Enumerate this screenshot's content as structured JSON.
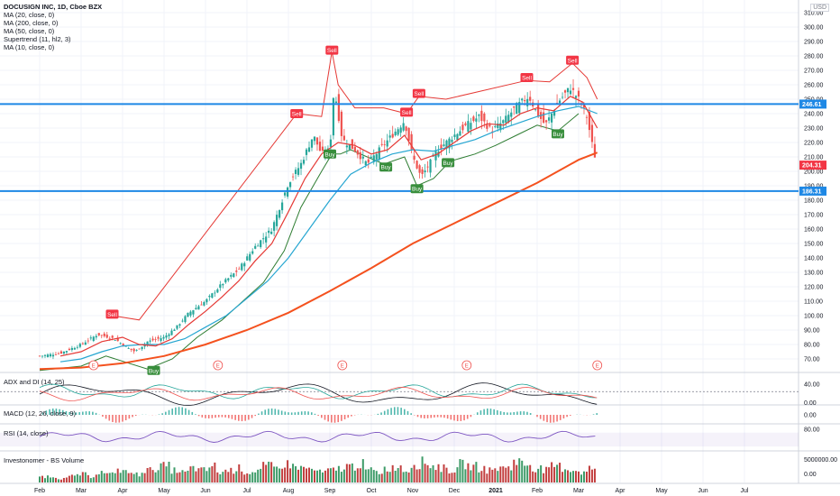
{
  "header": {
    "title": "DOCUSIGN INC, 1D, Cboe BZX",
    "indicators": [
      "MA (20, close, 0)",
      "MA (200, close, 0)",
      "MA (50, close, 0)",
      "Supertrend (11, hl2, 3)",
      "MA (10, close, 0)"
    ],
    "currency": "USD"
  },
  "panes": {
    "adx": {
      "label": "ADX and DI (14, 25)",
      "ticks": [
        "40.00",
        "0.00"
      ]
    },
    "macd": {
      "label": "MACD (12, 26, close, 9)",
      "ticks": [
        "0.00"
      ]
    },
    "rsi": {
      "label": "RSI (14, close)",
      "ticks": [
        "80.00"
      ]
    },
    "volume": {
      "label": "Investonomer - BS Volume",
      "ticks": [
        "5000000.00",
        "0.00"
      ]
    }
  },
  "colors": {
    "ma200": "#f4511e",
    "ma20": "#e53935",
    "ma50": "#26a6d1",
    "supertrend_up": "#2e7d32",
    "supertrend_down": "#e53935",
    "level": "#1e88e5",
    "bull": "#26a69a",
    "bear": "#ef5350"
  },
  "chart_data": {
    "type": "candlestick",
    "price_axis": {
      "min": 60,
      "max": 310,
      "ticks": [
        "310.00",
        "300.00",
        "290.00",
        "280.00",
        "270.00",
        "260.00",
        "250.00",
        "240.00",
        "230.00",
        "220.00",
        "210.00",
        "200.00",
        "190.00",
        "180.00",
        "170.00",
        "160.00",
        "150.00",
        "140.00",
        "130.00",
        "120.00",
        "110.00",
        "100.00",
        "90.00",
        "80.00",
        "70.00"
      ]
    },
    "time_axis": [
      "Feb",
      "Mar",
      "Apr",
      "May",
      "Jun",
      "Jul",
      "Aug",
      "Sep",
      "Oct",
      "Nov",
      "Dec",
      "2021",
      "Feb",
      "Mar",
      "Apr",
      "May",
      "Jun",
      "Jul"
    ],
    "horizontal_levels": [
      246.61,
      186.31
    ],
    "price_badges": [
      {
        "label": "246.61",
        "value": 246.61,
        "color": "#1e88e5"
      },
      {
        "label": "204.31",
        "value": 204.31,
        "color": "#f23645"
      },
      {
        "label": "186.31",
        "value": 186.31,
        "color": "#1e88e5"
      }
    ],
    "signals": [
      {
        "label": "Sell",
        "month": 1.75,
        "price": 101
      },
      {
        "label": "Buy",
        "month": 2.75,
        "price": 62
      },
      {
        "label": "Sell",
        "month": 7.05,
        "price": 284
      },
      {
        "label": "Buy",
        "month": 7.0,
        "price": 212
      },
      {
        "label": "Sell",
        "month": 6.2,
        "price": 240
      },
      {
        "label": "Buy",
        "month": 8.35,
        "price": 203
      },
      {
        "label": "Sell",
        "month": 8.85,
        "price": 241
      },
      {
        "label": "Sell",
        "month": 9.15,
        "price": 254
      },
      {
        "label": "Buy",
        "month": 9.1,
        "price": 188
      },
      {
        "label": "Buy",
        "month": 9.85,
        "price": 206
      },
      {
        "label": "Sell",
        "month": 11.75,
        "price": 265
      },
      {
        "label": "Buy",
        "month": 12.5,
        "price": 226
      },
      {
        "label": "Sell",
        "month": 12.85,
        "price": 277
      }
    ],
    "earnings": [
      {
        "label": "E",
        "month": 1.3
      },
      {
        "label": "E",
        "month": 4.3
      },
      {
        "label": "E",
        "month": 7.3
      },
      {
        "label": "E",
        "month": 10.3
      },
      {
        "label": "E",
        "month": 13.45
      }
    ],
    "close_path": [
      [
        0,
        72
      ],
      [
        0.5,
        74
      ],
      [
        1,
        80
      ],
      [
        1.4,
        87
      ],
      [
        1.8,
        84
      ],
      [
        2.1,
        78
      ],
      [
        2.3,
        75
      ],
      [
        2.6,
        82
      ],
      [
        3.0,
        85
      ],
      [
        3.3,
        92
      ],
      [
        3.6,
        102
      ],
      [
        4.0,
        110
      ],
      [
        4.4,
        122
      ],
      [
        4.8,
        132
      ],
      [
        5.2,
        148
      ],
      [
        5.6,
        160
      ],
      [
        6.0,
        192
      ],
      [
        6.3,
        205
      ],
      [
        6.6,
        225
      ],
      [
        6.8,
        212
      ],
      [
        7.0,
        215
      ],
      [
        7.1,
        258
      ],
      [
        7.3,
        222
      ],
      [
        7.6,
        215
      ],
      [
        7.9,
        205
      ],
      [
        8.2,
        215
      ],
      [
        8.5,
        225
      ],
      [
        8.8,
        235
      ],
      [
        9.0,
        210
      ],
      [
        9.2,
        196
      ],
      [
        9.4,
        205
      ],
      [
        9.6,
        215
      ],
      [
        9.8,
        220
      ],
      [
        10.0,
        225
      ],
      [
        10.3,
        232
      ],
      [
        10.6,
        238
      ],
      [
        10.9,
        228
      ],
      [
        11.2,
        235
      ],
      [
        11.5,
        245
      ],
      [
        11.8,
        252
      ],
      [
        12.0,
        240
      ],
      [
        12.2,
        232
      ],
      [
        12.5,
        248
      ],
      [
        12.8,
        258
      ],
      [
        13.0,
        250
      ],
      [
        13.2,
        238
      ],
      [
        13.35,
        215
      ],
      [
        13.45,
        204.31
      ]
    ],
    "ma20_path": [
      [
        0.5,
        72
      ],
      [
        1,
        75
      ],
      [
        1.5,
        82
      ],
      [
        2,
        85
      ],
      [
        2.4,
        80
      ],
      [
        2.8,
        79
      ],
      [
        3.2,
        84
      ],
      [
        3.6,
        94
      ],
      [
        4.0,
        103
      ],
      [
        4.4,
        113
      ],
      [
        4.8,
        124
      ],
      [
        5.2,
        138
      ],
      [
        5.6,
        150
      ],
      [
        6.0,
        172
      ],
      [
        6.4,
        195
      ],
      [
        6.8,
        212
      ],
      [
        7.2,
        220
      ],
      [
        7.6,
        218
      ],
      [
        8.0,
        212
      ],
      [
        8.4,
        215
      ],
      [
        8.8,
        225
      ],
      [
        9.2,
        208
      ],
      [
        9.6,
        212
      ],
      [
        10.0,
        220
      ],
      [
        10.4,
        228
      ],
      [
        10.8,
        233
      ],
      [
        11.2,
        232
      ],
      [
        11.6,
        240
      ],
      [
        12.0,
        244
      ],
      [
        12.4,
        242
      ],
      [
        12.8,
        252
      ],
      [
        13.1,
        248
      ],
      [
        13.45,
        230
      ]
    ],
    "ma50_path": [
      [
        0.5,
        68
      ],
      [
        1,
        70
      ],
      [
        1.5,
        75
      ],
      [
        2,
        79
      ],
      [
        2.5,
        80
      ],
      [
        3,
        80
      ],
      [
        3.5,
        84
      ],
      [
        4,
        92
      ],
      [
        4.5,
        100
      ],
      [
        5,
        112
      ],
      [
        5.5,
        124
      ],
      [
        6,
        140
      ],
      [
        6.5,
        160
      ],
      [
        7,
        180
      ],
      [
        7.5,
        198
      ],
      [
        8,
        206
      ],
      [
        8.5,
        212
      ],
      [
        9,
        215
      ],
      [
        9.5,
        214
      ],
      [
        10,
        218
      ],
      [
        10.5,
        222
      ],
      [
        11,
        228
      ],
      [
        11.5,
        233
      ],
      [
        12,
        238
      ],
      [
        12.5,
        242
      ],
      [
        13,
        245
      ],
      [
        13.45,
        240
      ]
    ],
    "ma200_path": [
      [
        0,
        63
      ],
      [
        1,
        64
      ],
      [
        2,
        67
      ],
      [
        3,
        72
      ],
      [
        4,
        80
      ],
      [
        5,
        90
      ],
      [
        6,
        102
      ],
      [
        7,
        117
      ],
      [
        8,
        133
      ],
      [
        9,
        150
      ],
      [
        10,
        164
      ],
      [
        11,
        178
      ],
      [
        12,
        192
      ],
      [
        13,
        208
      ],
      [
        13.45,
        213
      ]
    ],
    "supertrend_up": [
      [
        0,
        62
      ],
      [
        1,
        65
      ],
      [
        1.6,
        72
      ],
      [
        2.6,
        63
      ],
      [
        3.2,
        70
      ],
      [
        3.8,
        85
      ],
      [
        4.4,
        97
      ],
      [
        4.9,
        110
      ],
      [
        5.4,
        123
      ],
      [
        5.9,
        145
      ],
      [
        6.3,
        175
      ],
      [
        6.8,
        200
      ],
      [
        7.05,
        212
      ],
      [
        7.25,
        212
      ],
      [
        7.5,
        215
      ],
      [
        8.3,
        205
      ],
      [
        8.8,
        210
      ],
      [
        9.1,
        190
      ],
      [
        9.5,
        195
      ],
      [
        9.9,
        207
      ],
      [
        10.5,
        212
      ],
      [
        11.0,
        218
      ],
      [
        11.5,
        225
      ],
      [
        12.0,
        232
      ],
      [
        12.5,
        228
      ],
      [
        13.0,
        240
      ]
    ],
    "supertrend_down": [
      [
        1.75,
        100
      ],
      [
        2.4,
        97
      ],
      [
        6.2,
        240
      ],
      [
        6.8,
        238
      ],
      [
        7.05,
        283
      ],
      [
        7.2,
        260
      ],
      [
        7.6,
        244
      ],
      [
        8.3,
        244
      ],
      [
        8.85,
        240
      ],
      [
        9.15,
        252
      ],
      [
        9.8,
        250
      ],
      [
        11.75,
        263
      ],
      [
        12.3,
        262
      ],
      [
        12.85,
        275
      ],
      [
        13.2,
        265
      ],
      [
        13.45,
        250
      ]
    ],
    "volume_profile": [
      3,
      3,
      2,
      3,
      4,
      3,
      5,
      4,
      6,
      5,
      4,
      6,
      7,
      8,
      6,
      5,
      7,
      6,
      8,
      5,
      6,
      7,
      5,
      6,
      8,
      7,
      9,
      8,
      7,
      6,
      5,
      6,
      7,
      8,
      9,
      6,
      5,
      7,
      8,
      6,
      9,
      10,
      8,
      7,
      6,
      9,
      8,
      7,
      6,
      7,
      8,
      10,
      9,
      7,
      6,
      8,
      7,
      6,
      5,
      7
    ]
  }
}
